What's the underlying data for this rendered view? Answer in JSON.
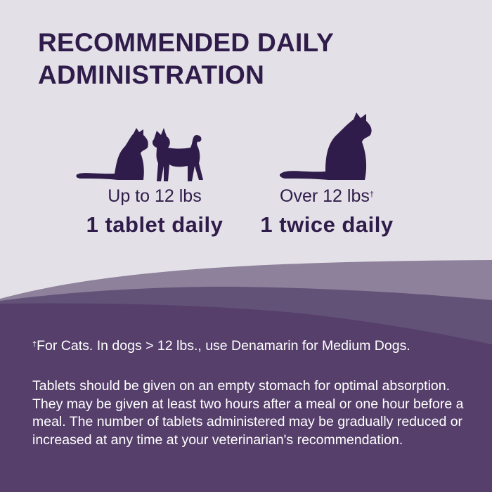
{
  "title_lines": [
    "RECOMMENDED DAILY",
    "ADMINISTRATION"
  ],
  "colors": {
    "background": "#e3e0e7",
    "text_dark": "#2f1c4a",
    "wave_light": "#8e819c",
    "wave_mid": "#635277",
    "wave_dark": "#563f6b"
  },
  "groups": [
    {
      "icons": [
        "cat-silhouette-icon",
        "dog-silhouette-icon"
      ],
      "weight": "Up to 12 lbs",
      "weight_mark": "",
      "dose": "1 tablet daily"
    },
    {
      "icons": [
        "cat-silhouette-icon"
      ],
      "weight": "Over 12 lbs",
      "weight_mark": "†",
      "dose": "1 twice daily"
    }
  ],
  "footnote": {
    "mark": "†",
    "text": "For Cats. In dogs > 12 lbs., use Denamarin for Medium Dogs."
  },
  "paragraph": "Tablets should be given on an empty stomach for optimal absorption. They may be given at least two hours after a meal or one hour before a meal. The number of tablets administered may be gradually reduced or increased at any time at your veterinarian's recommendation."
}
